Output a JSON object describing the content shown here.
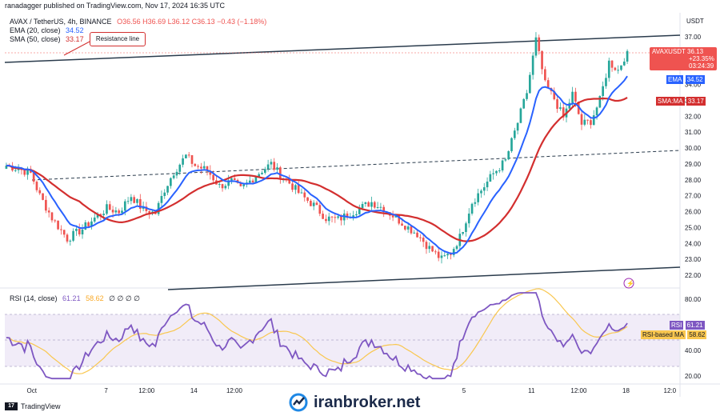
{
  "header": {
    "published": "ranadagger published on TradingView.com, Nov 17, 2024 16:35 UTC",
    "symbol_line": "AVAX / TetherUS, 4h, BINANCE",
    "ohlc": "O36.56 H36.69 L36.12 C36.13 −0.43 (−1.18%)",
    "ema_label": "EMA (20, close)",
    "ema_value": "34.52",
    "sma_label": "SMA (50, close)",
    "sma_value": "33.17"
  },
  "rsi_legend": {
    "label": "RSI (14, close)",
    "value1": "61.21",
    "value2": "58.62",
    "empties": "∅ ∅ ∅ ∅"
  },
  "annotation": {
    "resistance": "Resistance line"
  },
  "price_axis": {
    "currency": "USDT",
    "ticks": [
      "37.00",
      "36.00",
      "34.00",
      "33.00",
      "32.00",
      "31.00",
      "30.00",
      "29.00",
      "28.00",
      "27.00",
      "26.00",
      "25.00",
      "24.00",
      "23.00",
      "22.00"
    ],
    "tags": {
      "symbol": "AVAXUSDT",
      "last_price": "36.13",
      "last_change": "+23.35%",
      "countdown": "03:24:39",
      "ema_name": "EMA",
      "ema_price": "34.52",
      "sma_name": "SMA:MA",
      "sma_price": "33.17"
    }
  },
  "rsi_axis": {
    "ticks": [
      "80.00",
      "40.00",
      "20.00"
    ],
    "rsi_name": "RSI",
    "rsi_value": "61.21",
    "ma_name": "RSI-based MA",
    "ma_value": "58.62"
  },
  "time_axis": [
    "Oct",
    "7",
    "12:00",
    "14",
    "12:00",
    "5",
    "11",
    "12:00",
    "18",
    "12:0"
  ],
  "footer": {
    "brand": "iranbroker.net",
    "tradingview": "TradingView"
  },
  "colors": {
    "bull": "#26a69a",
    "bear": "#ef5350",
    "ema": "#2962ff",
    "sma": "#d32f2f",
    "rsi": "#7e57c2",
    "rsi_ma": "#f9c74f",
    "trendline": "#2a3b4c"
  },
  "chart_data": [
    {
      "type": "candlestick",
      "title": "AVAX / TetherUS, 4h, BINANCE",
      "ylim": [
        21.6,
        37.8
      ],
      "series": [
        {
          "name": "EMA (20, close)",
          "last": 34.52
        },
        {
          "name": "SMA (50, close)",
          "last": 33.17
        }
      ],
      "price_path": [
        [
          0,
          28.9
        ],
        [
          8,
          28.7
        ],
        [
          16,
          28.4
        ],
        [
          22,
          27.0
        ],
        [
          30,
          25.6
        ],
        [
          40,
          24.3
        ],
        [
          50,
          24.9
        ],
        [
          58,
          25.6
        ],
        [
          66,
          26.2
        ],
        [
          74,
          26.0
        ],
        [
          82,
          27.0
        ],
        [
          90,
          26.1
        ],
        [
          98,
          25.9
        ],
        [
          104,
          27.4
        ],
        [
          110,
          28.5
        ],
        [
          118,
          29.5
        ],
        [
          124,
          28.9
        ],
        [
          132,
          28.6
        ],
        [
          140,
          27.6
        ],
        [
          148,
          27.9
        ],
        [
          154,
          27.4
        ],
        [
          162,
          28.1
        ],
        [
          168,
          28.6
        ],
        [
          174,
          29.0
        ],
        [
          180,
          28.3
        ],
        [
          186,
          27.8
        ],
        [
          194,
          27.0
        ],
        [
          202,
          26.4
        ],
        [
          210,
          25.6
        ],
        [
          218,
          25.5
        ],
        [
          226,
          25.9
        ],
        [
          234,
          26.3
        ],
        [
          240,
          26.6
        ],
        [
          248,
          26.2
        ],
        [
          256,
          25.6
        ],
        [
          264,
          25.0
        ],
        [
          270,
          24.6
        ],
        [
          278,
          23.7
        ],
        [
          286,
          23.0
        ],
        [
          292,
          23.4
        ],
        [
          298,
          24.4
        ],
        [
          306,
          26.6
        ],
        [
          314,
          27.6
        ],
        [
          320,
          28.4
        ],
        [
          328,
          29.2
        ],
        [
          336,
          31.6
        ],
        [
          342,
          33.5
        ],
        [
          348,
          36.8
        ],
        [
          354,
          34.0
        ],
        [
          360,
          33.1
        ],
        [
          366,
          31.9
        ],
        [
          372,
          33.4
        ],
        [
          378,
          31.5
        ],
        [
          384,
          31.7
        ],
        [
          390,
          33.0
        ],
        [
          396,
          35.4
        ],
        [
          402,
          34.9
        ],
        [
          408,
          36.1
        ]
      ]
    },
    {
      "type": "line",
      "title": "RSI (14, close)",
      "ylim": [
        20,
        80
      ],
      "series": [
        {
          "name": "RSI",
          "last": 61.21
        },
        {
          "name": "RSI-based MA",
          "last": 58.62
        }
      ]
    }
  ]
}
